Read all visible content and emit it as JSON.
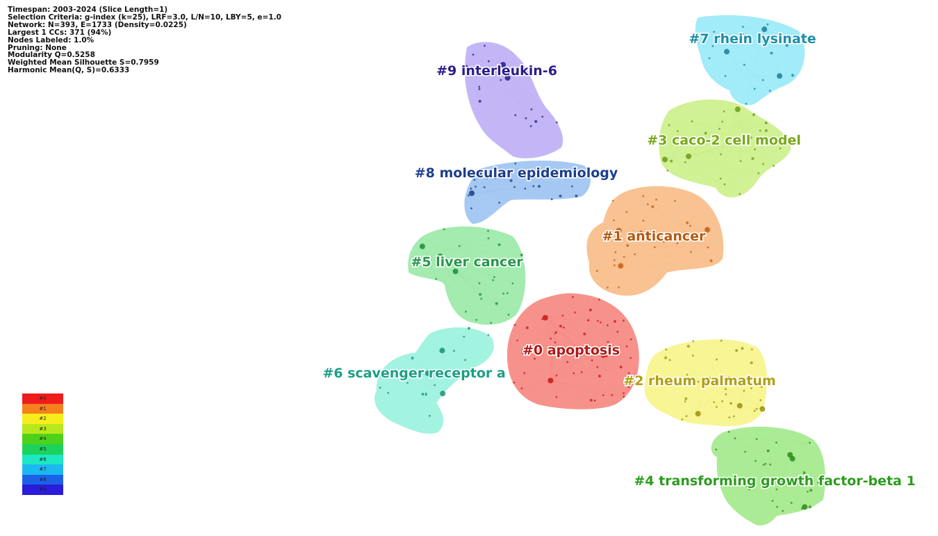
{
  "stats_lines": [
    "Timespan: 2003-2024 (Slice Length=1)",
    "Selection Criteria: g-index (k=25), LRF=3.0, L/N=10, LBY=5, e=1.0",
    "Network: N=393, E=1733 (Density=0.0225)",
    "Largest 1 CCs: 371 (94%)",
    "Nodes Labeled: 1.0%",
    "Pruning: None",
    "Modularity Q=0.5258",
    "Weighted Mean Silhouette S=0.7959",
    "Harmonic Mean(Q, S)=0.6333"
  ],
  "clusters": [
    {
      "id": "0",
      "label": "#0 apoptosis",
      "fill": "#f47a72",
      "text_color": "#b01818"
    },
    {
      "id": "1",
      "label": "#1 anticancer",
      "fill": "#f8b57a",
      "text_color": "#b25a12"
    },
    {
      "id": "2",
      "label": "#2 rheum palmatum",
      "fill": "#f6f37c",
      "text_color": "#b0a014"
    },
    {
      "id": "3",
      "label": "#3 caco-2 cell model",
      "fill": "#c6ee7c",
      "text_color": "#7aa81a"
    },
    {
      "id": "4",
      "label": "#4 transforming growth factor-beta 1",
      "fill": "#98e67e",
      "text_color": "#2c9c1e"
    },
    {
      "id": "5",
      "label": "#5 liver cancer",
      "fill": "#8fe69c",
      "text_color": "#24984a"
    },
    {
      "id": "6",
      "label": "#6 scavenger receptor a",
      "fill": "#8ff0da",
      "text_color": "#1a9f86"
    },
    {
      "id": "7",
      "label": "#7 rhein lysinate",
      "fill": "#8ee6f6",
      "text_color": "#1d8fa8"
    },
    {
      "id": "8",
      "label": "#8 molecular epidemiology",
      "fill": "#92bdf0",
      "text_color": "#1c3e8e"
    },
    {
      "id": "9",
      "label": "#9 interleukin-6",
      "fill": "#b7a6f4",
      "text_color": "#2a1c8e"
    }
  ],
  "legend": [
    {
      "label": "#0",
      "color": "#ee1c1c"
    },
    {
      "label": "#1",
      "color": "#f5801c"
    },
    {
      "label": "#2",
      "color": "#f6ee1c"
    },
    {
      "label": "#3",
      "color": "#b8e81c"
    },
    {
      "label": "#4",
      "color": "#4dd21c"
    },
    {
      "label": "#5",
      "color": "#1cd25a"
    },
    {
      "label": "#6",
      "color": "#1ce8c2"
    },
    {
      "label": "#7",
      "color": "#1cb8f0"
    },
    {
      "label": "#8",
      "color": "#1c62e8"
    },
    {
      "label": "#9",
      "color": "#2a1cd8"
    }
  ]
}
